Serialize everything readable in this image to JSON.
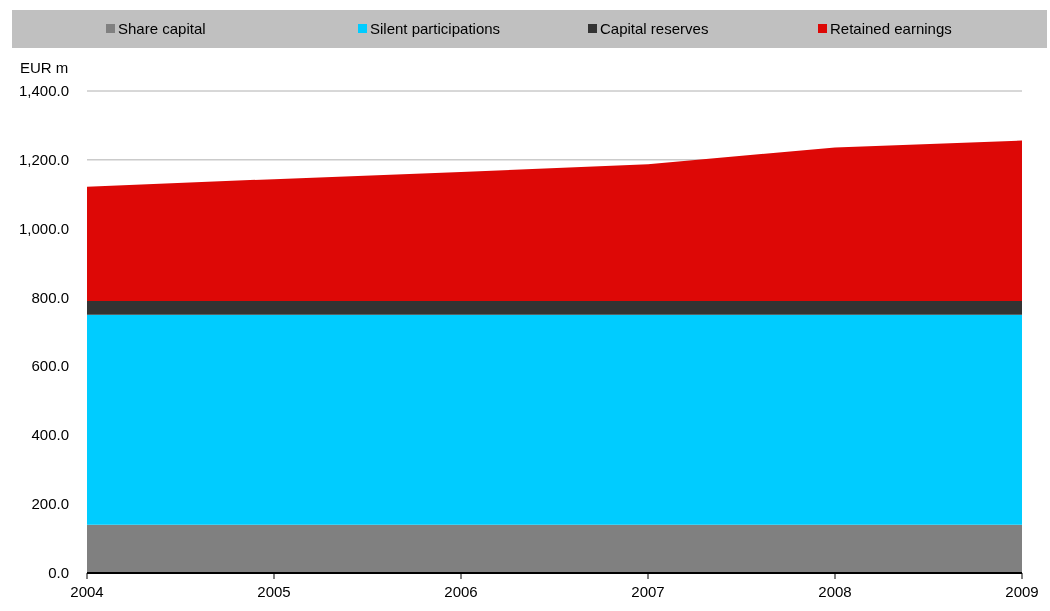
{
  "chart_data": {
    "type": "area",
    "stacked": true,
    "ylabel": "EUR m",
    "x": [
      2004,
      2005,
      2006,
      2007,
      2008,
      2009
    ],
    "xlim": [
      2004,
      2009
    ],
    "xticks": [
      2004,
      2005,
      2006,
      2007,
      2008,
      2009
    ],
    "ylim": [
      0,
      1400
    ],
    "yticks": [
      {
        "value": 0,
        "label": "0.0"
      },
      {
        "value": 200,
        "label": "200.0"
      },
      {
        "value": 400,
        "label": "400.0"
      },
      {
        "value": 600,
        "label": "600.0"
      },
      {
        "value": 800,
        "label": "800.0"
      },
      {
        "value": 1000,
        "label": "1,000.0"
      },
      {
        "value": 1200,
        "label": "1,200.0"
      },
      {
        "value": 1400,
        "label": "1,400.0"
      }
    ],
    "grid": "y",
    "legend": "top",
    "series": [
      {
        "name": "Share capital",
        "color": "#808080",
        "values": [
          140,
          140,
          140,
          140,
          140,
          140
        ]
      },
      {
        "name": "Silent participations",
        "color": "#00ccff",
        "values": [
          610,
          610,
          610,
          610,
          610,
          610
        ]
      },
      {
        "name": "Capital reserves",
        "color": "#333333",
        "values": [
          40,
          40,
          40,
          40,
          40,
          40
        ]
      },
      {
        "name": "Retained earnings",
        "color": "#dd0806",
        "values": [
          332,
          354,
          375,
          397,
          446,
          466
        ]
      }
    ]
  }
}
